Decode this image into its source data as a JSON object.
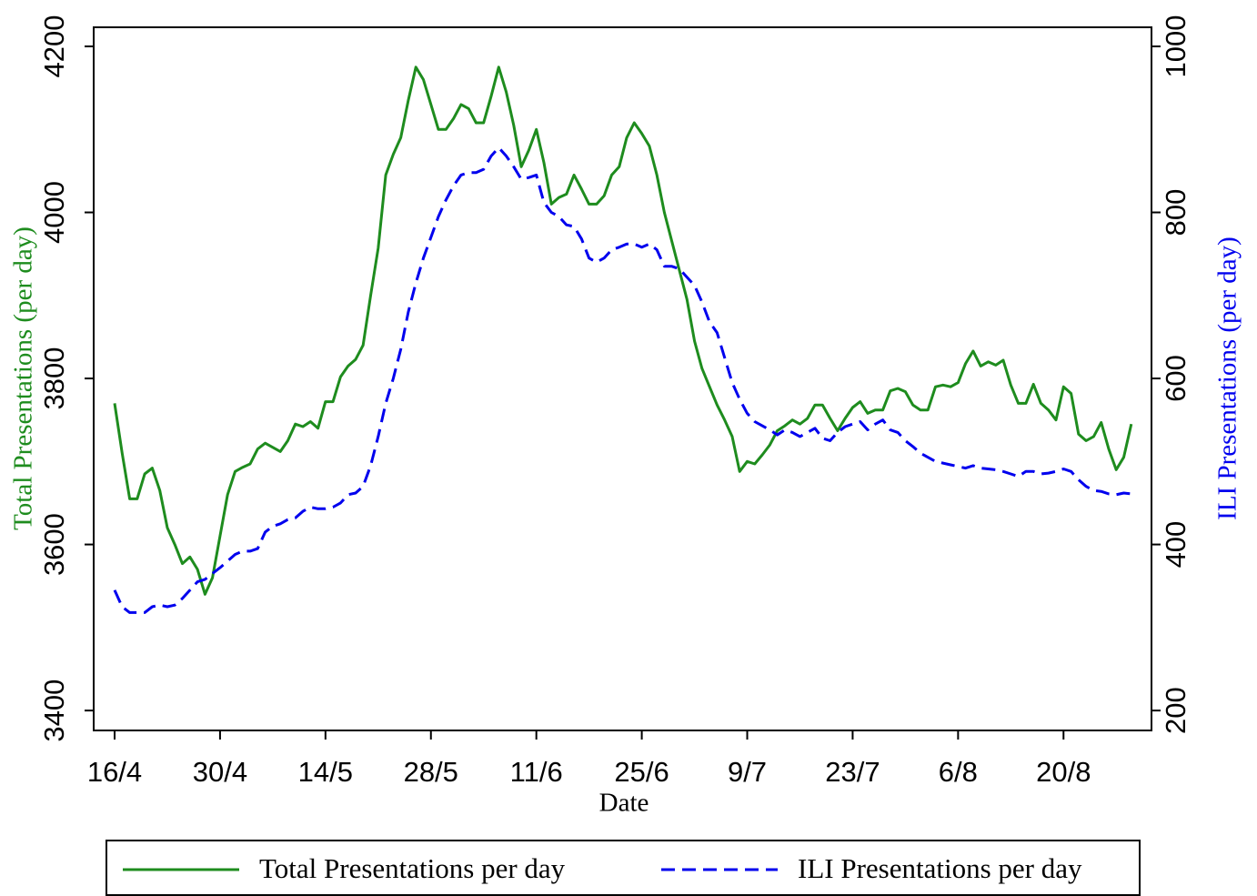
{
  "chart_data": {
    "type": "line",
    "x_label": "Date",
    "y_label": "Total Presentations (per day)",
    "y2_label": "ILI Presentations (per day)",
    "x": [
      "16/4",
      "17/4",
      "18/4",
      "19/4",
      "20/4",
      "21/4",
      "22/4",
      "23/4",
      "24/4",
      "25/4",
      "26/4",
      "27/4",
      "28/4",
      "29/4",
      "30/4",
      "1/5",
      "2/5",
      "3/5",
      "4/5",
      "5/5",
      "6/5",
      "7/5",
      "8/5",
      "9/5",
      "10/5",
      "11/5",
      "12/5",
      "13/5",
      "14/5",
      "15/5",
      "16/5",
      "17/5",
      "18/5",
      "19/5",
      "20/5",
      "21/5",
      "22/5",
      "23/5",
      "24/5",
      "25/5",
      "26/5",
      "27/5",
      "28/5",
      "29/5",
      "30/5",
      "31/5",
      "1/6",
      "2/6",
      "3/6",
      "4/6",
      "5/6",
      "6/6",
      "7/6",
      "8/6",
      "9/6",
      "10/6",
      "11/6",
      "12/6",
      "13/6",
      "14/6",
      "15/6",
      "16/6",
      "17/6",
      "18/6",
      "19/6",
      "20/6",
      "21/6",
      "22/6",
      "23/6",
      "24/6",
      "25/6",
      "26/6",
      "27/6",
      "28/6",
      "29/6",
      "30/6",
      "1/7",
      "2/7",
      "3/7",
      "4/7",
      "5/7",
      "6/7",
      "7/7",
      "8/7",
      "9/7",
      "10/7",
      "11/7",
      "12/7",
      "13/7",
      "14/7",
      "15/7",
      "16/7",
      "17/7",
      "18/7",
      "19/7",
      "20/7",
      "21/7",
      "22/7",
      "23/7",
      "24/7",
      "25/7",
      "26/7",
      "27/7",
      "28/7",
      "29/7",
      "30/7",
      "31/7",
      "1/8",
      "2/8",
      "3/8",
      "4/8",
      "5/8",
      "6/8",
      "7/8",
      "8/8",
      "9/8",
      "10/8",
      "11/8",
      "12/8",
      "13/8",
      "14/8",
      "15/8",
      "16/8",
      "17/8",
      "18/8",
      "19/8",
      "20/8",
      "21/8",
      "22/8",
      "23/8",
      "24/8",
      "25/8",
      "26/8",
      "27/8",
      "28/8",
      "29/8"
    ],
    "xticks": [
      "16/4",
      "30/4",
      "14/5",
      "28/5",
      "11/6",
      "25/6",
      "9/7",
      "23/7",
      "6/8",
      "20/8"
    ],
    "series": [
      {
        "name": "Total Presentations per day",
        "color": "#1e8c1e",
        "dash": false,
        "values": [
          3770,
          3710,
          3655,
          3655,
          3685,
          3692,
          3665,
          3620,
          3600,
          3577,
          3585,
          3570,
          3540,
          3560,
          3610,
          3660,
          3688,
          3693,
          3697,
          3715,
          3722,
          3717,
          3712,
          3725,
          3745,
          3742,
          3748,
          3740,
          3772,
          3772,
          3802,
          3815,
          3823,
          3840,
          3900,
          3957,
          4045,
          4070,
          4090,
          4135,
          4175,
          4160,
          4130,
          4100,
          4100,
          4113,
          4130,
          4125,
          4108,
          4108,
          4140,
          4175,
          4145,
          4105,
          4055,
          4075,
          4100,
          4060,
          4010,
          4018,
          4022,
          4045,
          4028,
          4010,
          4010,
          4020,
          4045,
          4055,
          4090,
          4108,
          4095,
          4080,
          4045,
          4000,
          3965,
          3930,
          3895,
          3845,
          3812,
          3790,
          3768,
          3750,
          3730,
          3688,
          3700,
          3697,
          3708,
          3720,
          3737,
          3743,
          3750,
          3745,
          3752,
          3768,
          3768,
          3752,
          3737,
          3752,
          3765,
          3772,
          3758,
          3762,
          3762,
          3785,
          3788,
          3784,
          3768,
          3762,
          3762,
          3790,
          3792,
          3790,
          3795,
          3818,
          3833,
          3815,
          3820,
          3816,
          3822,
          3792,
          3770,
          3770,
          3793,
          3770,
          3762,
          3750,
          3790,
          3782,
          3733,
          3725,
          3730,
          3747,
          3715,
          3690,
          3705,
          3745
        ]
      },
      {
        "name": "ILI Presentations per day",
        "color": "#0000ee",
        "dash": true,
        "axis": "y2",
        "values": [
          345,
          325,
          318,
          318,
          318,
          325,
          327,
          325,
          327,
          335,
          345,
          355,
          358,
          365,
          372,
          380,
          388,
          392,
          392,
          395,
          415,
          422,
          425,
          430,
          432,
          440,
          445,
          443,
          443,
          445,
          450,
          460,
          462,
          470,
          495,
          530,
          570,
          600,
          635,
          680,
          715,
          745,
          770,
          795,
          815,
          832,
          845,
          848,
          848,
          852,
          868,
          878,
          868,
          855,
          840,
          842,
          845,
          812,
          800,
          795,
          785,
          783,
          768,
          745,
          740,
          745,
          755,
          758,
          762,
          762,
          758,
          762,
          755,
          735,
          735,
          732,
          722,
          712,
          692,
          668,
          655,
          625,
          595,
          575,
          558,
          548,
          543,
          538,
          532,
          538,
          535,
          530,
          535,
          540,
          528,
          525,
          535,
          542,
          545,
          548,
          538,
          545,
          550,
          538,
          535,
          525,
          518,
          510,
          505,
          500,
          498,
          496,
          494,
          492,
          495,
          492,
          491,
          490,
          488,
          485,
          482,
          488,
          488,
          485,
          486,
          488,
          491,
          488,
          478,
          470,
          465,
          464,
          461,
          460,
          462,
          461
        ]
      }
    ],
    "ylim": [
      3376,
      4223
    ],
    "yticks": [
      3400,
      3600,
      3800,
      4000,
      4200
    ],
    "y2lim": [
      176,
      1023
    ],
    "y2ticks": [
      200,
      400,
      600,
      800,
      1000
    ],
    "grid": false
  }
}
